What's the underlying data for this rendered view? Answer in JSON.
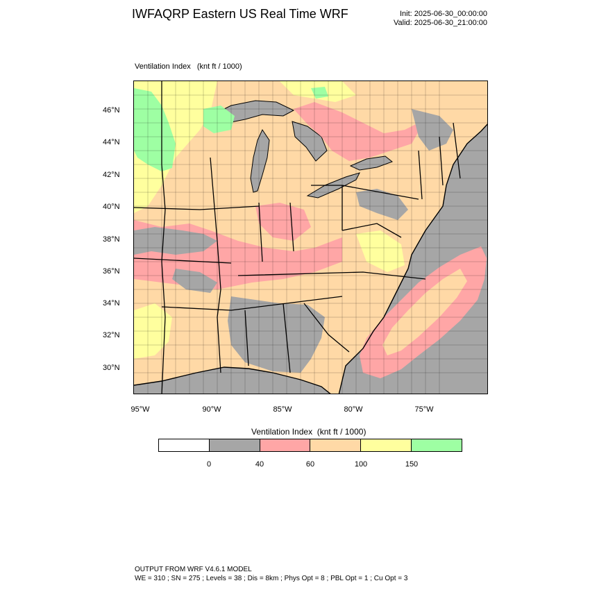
{
  "header": {
    "title": "IWFAQRP Eastern US Real Time WRF",
    "init": "Init: 2025-06-30_00:00:00",
    "valid": "Valid: 2025-06-30_21:00:00"
  },
  "map": {
    "subtitle": "Ventilation Index   (knt ft / 1000)",
    "lat_labels": [
      "46°N",
      "44°N",
      "42°N",
      "40°N",
      "38°N",
      "36°N",
      "34°N",
      "32°N",
      "30°N"
    ],
    "lon_labels": [
      "95°W",
      "90°W",
      "85°W",
      "80°W",
      "75°W"
    ],
    "colors": {
      "ocean": "#a6a6a6",
      "lake": "#a6a6a6",
      "low": "#a6a6a6",
      "pink": "#ffa6a6",
      "orange": "#ffd9a6",
      "yellow": "#ffff9e",
      "green": "#9effa3"
    }
  },
  "colorbar": {
    "title": "Ventilation Index  (knt ft / 1000)",
    "colors": [
      "#ffffff",
      "#a6a6a6",
      "#ffa6a6",
      "#ffd9a6",
      "#ffff9e",
      "#9effa3"
    ],
    "ticks": [
      "0",
      "40",
      "60",
      "100",
      "150"
    ]
  },
  "footer": {
    "line1": "OUTPUT FROM WRF V4.6.1 MODEL",
    "line2": "WE = 310 ; SN = 275 ; Levels = 38 ; Dis = 8km ; Phys Opt = 8 ; PBL Opt = 1 ; Cu Opt = 3"
  }
}
